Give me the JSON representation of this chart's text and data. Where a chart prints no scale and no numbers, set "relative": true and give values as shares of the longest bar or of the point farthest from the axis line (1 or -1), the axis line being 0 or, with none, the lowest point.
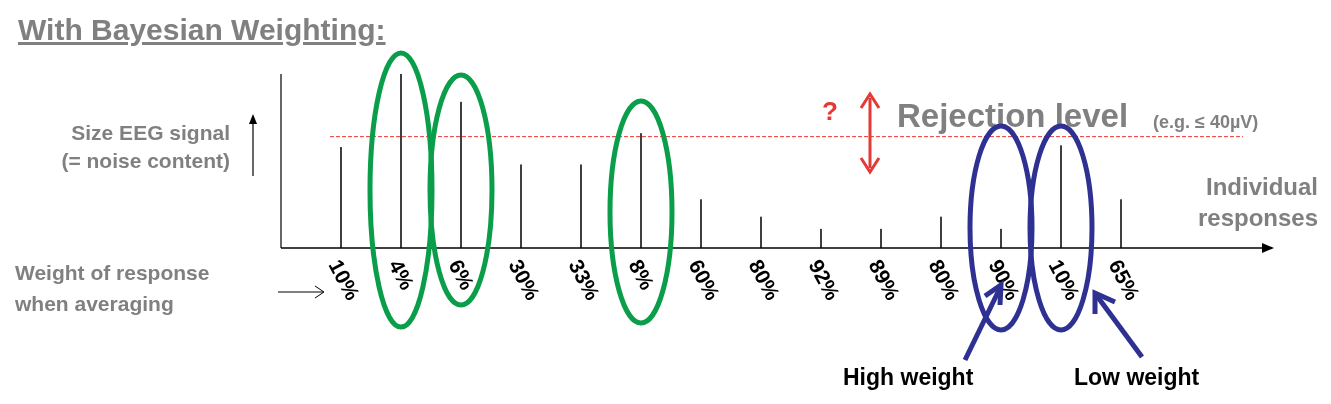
{
  "chart_data": {
    "type": "bar",
    "relative": true,
    "title": "With Bayesian Weighting:",
    "ylabel": "Size EEG signal\n(= noise content)",
    "xlabel": "Individual\nresponses",
    "categories": [
      "10%",
      "4%",
      "6%",
      "30%",
      "33%",
      "8%",
      "60%",
      "80%",
      "92%",
      "89%",
      "80%",
      "90%",
      "10%",
      "65%"
    ],
    "values": [
      0.58,
      1,
      0.84,
      0.48,
      0.48,
      0.66,
      0.28,
      0.18,
      0.11,
      0.11,
      0.18,
      0.11,
      0.59,
      0.28
    ],
    "color": "#000000",
    "ref_lines": [
      {
        "axis": "y",
        "value": 0.64,
        "label": "Rejection level",
        "color": "#e53935",
        "line_style": "dashed"
      }
    ],
    "annotations": [
      "(e.g. ≤ 40µV)",
      "?",
      "Weight of response\nwhen averaging",
      "High weight",
      "Low weight"
    ],
    "grid": false
  }
}
